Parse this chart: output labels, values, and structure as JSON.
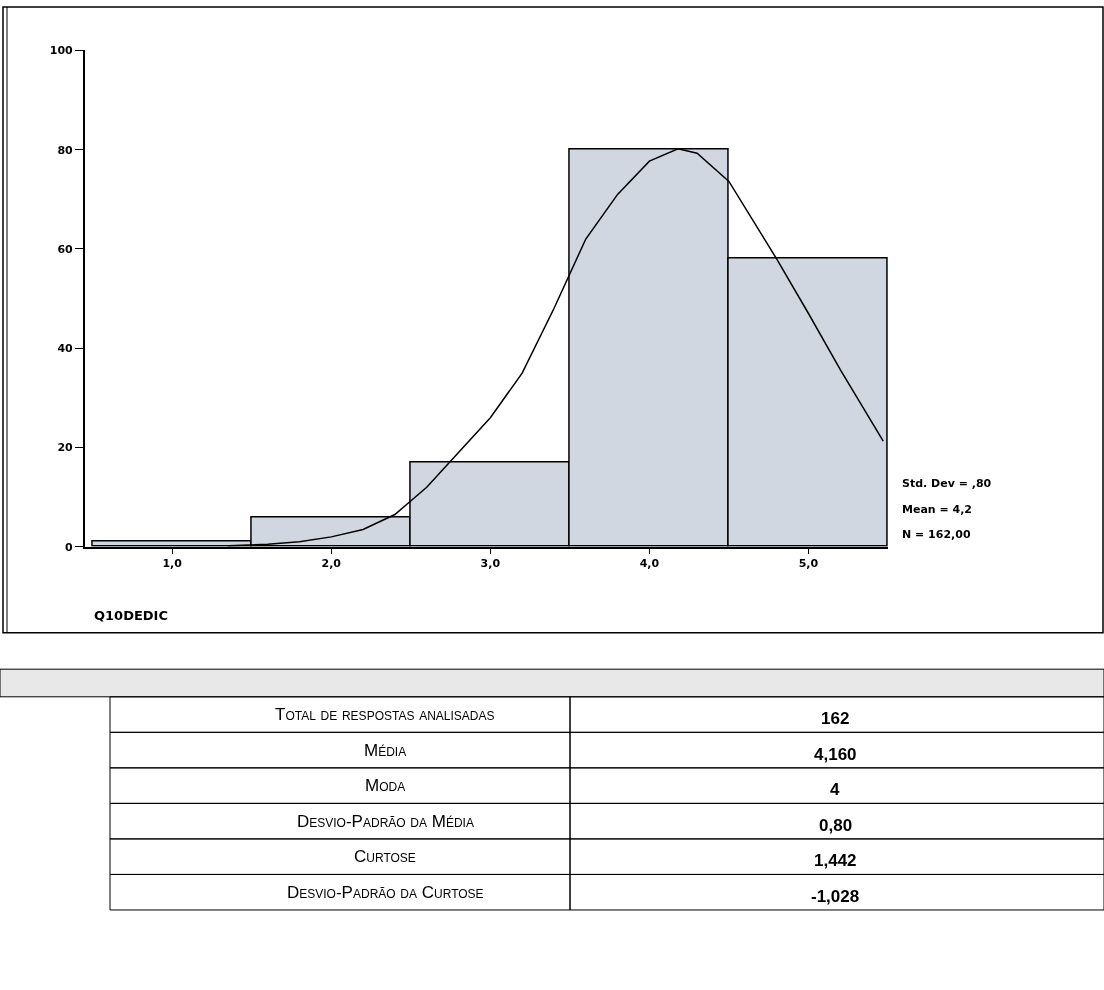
{
  "chart_data": [
    {
      "type": "histogram",
      "xlabel": "Q10DEDIC",
      "bins": [
        0.5,
        1.5,
        2.5,
        3.5,
        4.5,
        5.5
      ],
      "values": [
        1,
        6,
        17,
        80,
        58
      ],
      "color": "#d0d7e0",
      "xlim": [
        0.45,
        5.5
      ],
      "ylim": [
        0,
        100
      ],
      "xticks": [
        {
          "value": 1,
          "label": "1,0"
        },
        {
          "value": 2,
          "label": "2,0"
        },
        {
          "value": 3,
          "label": "3,0"
        },
        {
          "value": 4,
          "label": "4,0"
        },
        {
          "value": 5,
          "label": "5,0"
        }
      ],
      "yticks": [
        0,
        20,
        40,
        60,
        80,
        100
      ],
      "series": [
        {
          "type": "line",
          "color": "#000000",
          "x": [
            1.35,
            1.6,
            1.8,
            2.0,
            2.2,
            2.4,
            2.6,
            2.8,
            3.0,
            3.2,
            3.4,
            3.6,
            3.8,
            4.0,
            4.18,
            4.3,
            4.5,
            4.8,
            5.0,
            5.2,
            5.47
          ],
          "values": [
            0.2,
            0.5,
            1,
            2,
            3.5,
            6.5,
            12,
            19,
            26,
            35,
            48,
            62,
            71,
            77.7,
            80.2,
            79.3,
            73.6,
            58,
            47,
            35.7,
            21.3
          ]
        }
      ],
      "annotations": [
        "Std. Dev = ,80",
        "Mean = 4,2",
        "N = 162,00"
      ]
    },
    {
      "type": "other",
      "annotations": [
        "Total de respostas analisadas",
        "162",
        "Média",
        "4,160",
        "Moda",
        "4",
        "Desvio-Padrão da Média",
        "0,80",
        "Curtose",
        "1,442",
        "Desvio-Padrão da Curtose",
        "-1,028"
      ]
    }
  ]
}
